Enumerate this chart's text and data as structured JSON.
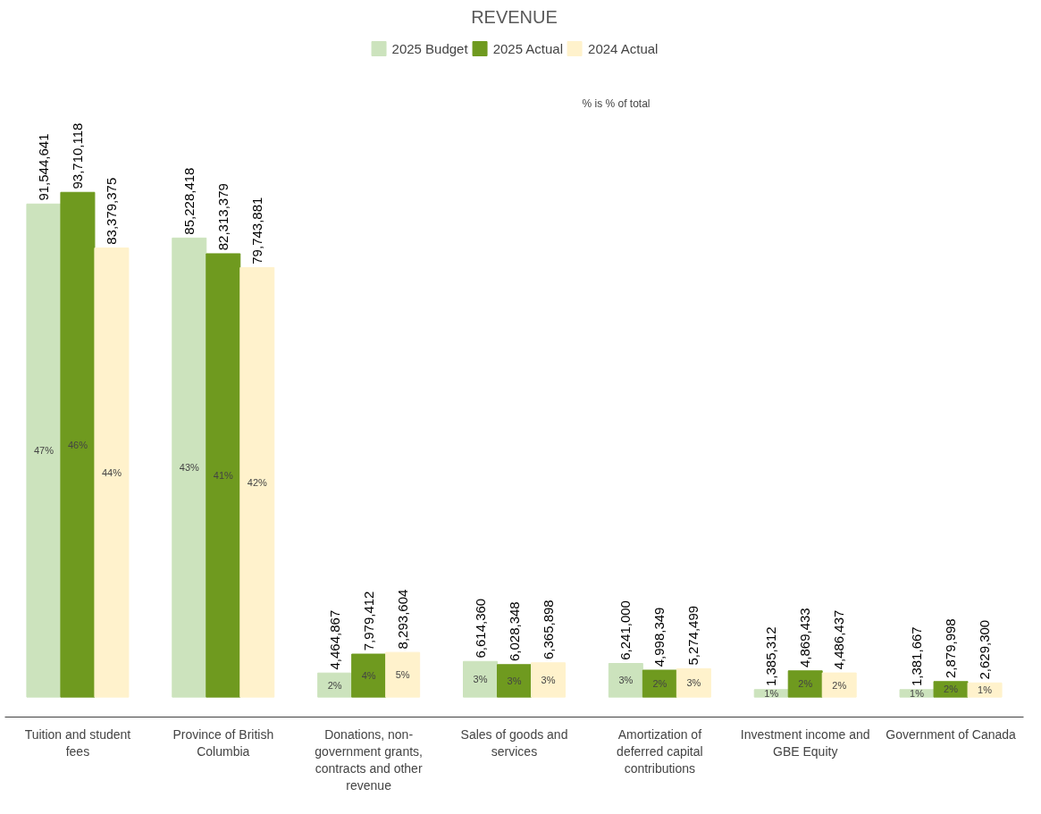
{
  "chart_data": {
    "type": "bar",
    "title": "REVENUE",
    "categories": [
      "Tuition and student fees",
      "Province of British Columbia",
      "Donations, non-government grants, contracts and other revenue",
      "Sales of goods and services",
      "Amortization of deferred capital contributions",
      "Investment income and GBE Equity",
      "Government of Canada"
    ],
    "series": [
      {
        "name": "2025 Budget",
        "color": "#cce3bd",
        "values": [
          91544641,
          85228418,
          4464867,
          6614360,
          6241000,
          1385312,
          1381667
        ],
        "value_labels": [
          "91,544,641",
          "85,228,418",
          "4,464,867",
          "6,614,360",
          "6,241,000",
          "1,385,312",
          "1,381,667"
        ]
      },
      {
        "name": "2025 Actual",
        "color": "#6f9a1f",
        "values": [
          93710118,
          82313379,
          7979412,
          6028348,
          4998349,
          4869433,
          2879998
        ],
        "value_labels": [
          "93,710,118",
          "82,313,379",
          "7,979,412",
          "6,028,348",
          "4,998,349",
          "4,869,433",
          "2,879,998"
        ]
      },
      {
        "name": "2024 Actual",
        "color": "#fff2cc",
        "values": [
          83379375,
          79743881,
          8293604,
          6365898,
          5274499,
          4486437,
          2629300
        ],
        "value_labels": [
          "83,379,375",
          "79,743,881",
          "8,293,604",
          "6,365,898",
          "5,274,499",
          "4,486,437",
          "2,629,300"
        ]
      }
    ],
    "legend": "top",
    "grid": false,
    "annotations": [
      "% is % of total",
      "47%",
      "46%",
      "44%",
      "43%",
      "41%",
      "42%",
      "2%",
      "4%",
      "5%",
      "3%",
      "3%",
      "3%",
      "3%",
      "2%",
      "3%",
      "1%",
      "2%",
      "2%",
      "1%",
      "2%",
      "1%"
    ]
  }
}
